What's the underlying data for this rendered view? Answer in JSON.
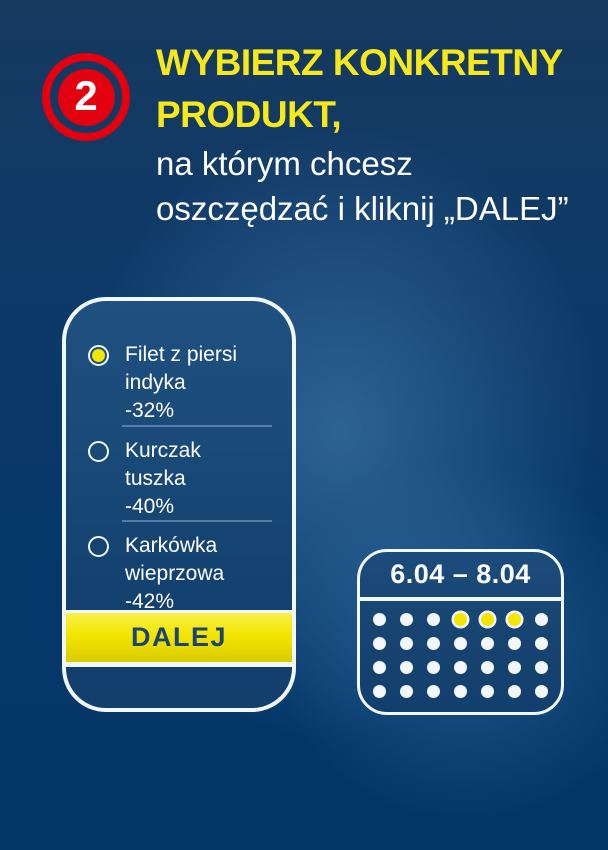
{
  "step_badge": {
    "number": "2",
    "color": "#e3000f"
  },
  "heading": {
    "line1": "WYBIERZ KONKRETNY",
    "line2": "PRODUKT,",
    "line3": "na którym chcesz",
    "line4": "oszczędzać i kliknij „DALEJ”",
    "accent_color": "#f7e81c",
    "text_color": "#ffffff"
  },
  "phone": {
    "options": [
      {
        "label_lines": [
          "Filet z piersi",
          "indyka"
        ],
        "discount": "-32%",
        "selected": true
      },
      {
        "label_lines": [
          "Kurczak",
          "tuszka"
        ],
        "discount": "-40%",
        "selected": false
      },
      {
        "label_lines": [
          "Karkówka",
          "wieprzowa"
        ],
        "discount": "-42%",
        "selected": false
      }
    ],
    "button_label": "DALEJ",
    "button_bg": "#f3e600",
    "button_text_color": "#1b4574"
  },
  "calendar": {
    "date_range": "6.04 – 8.04",
    "rows": 4,
    "cols": 7,
    "highlighted": [
      {
        "row": 0,
        "col": 3
      },
      {
        "row": 0,
        "col": 4
      },
      {
        "row": 0,
        "col": 5
      }
    ],
    "dot_color": "#ffffff",
    "highlight_color": "#f3e600"
  },
  "colors": {
    "background": "#0a3866",
    "red": "#e3000f",
    "yellow": "#f3e600"
  }
}
